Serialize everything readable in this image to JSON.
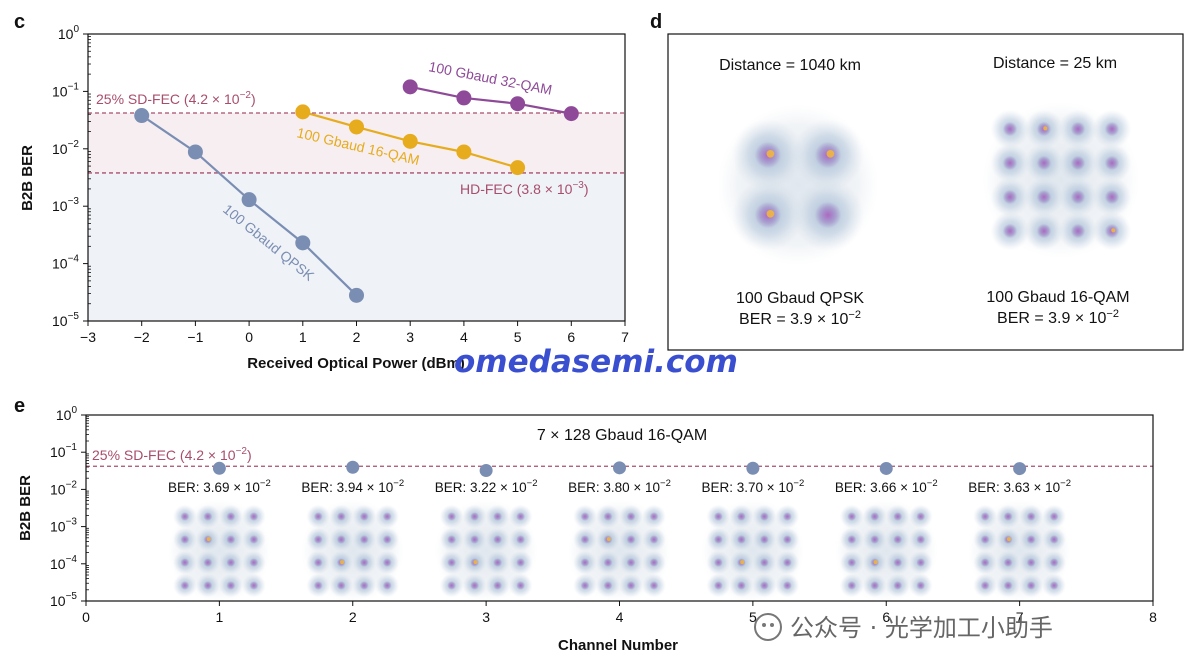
{
  "panels": {
    "c": "c",
    "d": "d",
    "e": "e"
  },
  "colors": {
    "qpsk": "#7a8db3",
    "qam16": "#e7ac1d",
    "qam32": "#8e4a98",
    "fec": "#a84e6c",
    "shade_top": "#f6eef1",
    "shade_bottom": "#eff2f6",
    "const_glow": "#a9bed6",
    "const_core": "#b06ac0",
    "const_peak": "#f1b63e"
  },
  "chart_data": [
    {
      "id": "c",
      "type": "line",
      "xlabel": "Received Optical Power (dBm)",
      "ylabel": "B2B BER",
      "xlim": [
        -3,
        7
      ],
      "xticks": [
        "−3",
        "−2",
        "−1",
        "0",
        "1",
        "2",
        "3",
        "4",
        "5",
        "6",
        "7"
      ],
      "ylim_log10": [
        -5,
        0
      ],
      "yticks": [
        {
          "base": "10",
          "exp": "0"
        },
        {
          "base": "10",
          "exp": "−1"
        },
        {
          "base": "10",
          "exp": "−2"
        },
        {
          "base": "10",
          "exp": "−3"
        },
        {
          "base": "10",
          "exp": "−4"
        },
        {
          "base": "10",
          "exp": "−5"
        }
      ],
      "series": [
        {
          "name": "100 Gbaud QPSK",
          "color_key": "qpsk",
          "x": [
            -2,
            -1,
            0,
            1,
            2
          ],
          "y": [
            0.038,
            0.0088,
            0.0013,
            0.00023,
            2.8e-05
          ]
        },
        {
          "name": "100 Gbaud 16-QAM",
          "color_key": "qam16",
          "x": [
            1,
            2,
            3,
            4,
            5
          ],
          "y": [
            0.044,
            0.024,
            0.0135,
            0.0088,
            0.0047
          ]
        },
        {
          "name": "100 Gbaud 32-QAM",
          "color_key": "qam32",
          "x": [
            3,
            4,
            5,
            6
          ],
          "y": [
            0.12,
            0.077,
            0.061,
            0.041
          ]
        }
      ],
      "series_labels": {
        "qpsk": "100 Gbaud QPSK",
        "qam16": "100 Gbaud 16-QAM",
        "qam32": "100 Gbaud 32-QAM"
      },
      "thresholds": [
        {
          "id": "sd",
          "value": 0.042,
          "label_prefix": "25% SD-FEC (4.2 × 10",
          "label_exp": "−2",
          "label_suffix": ")"
        },
        {
          "id": "hd",
          "value": 0.0038,
          "label_prefix": "HD-FEC (3.8 × 10",
          "label_exp": "−3",
          "label_suffix": ")"
        }
      ]
    },
    {
      "id": "d",
      "type": "other",
      "items": [
        {
          "title": "Distance = 1040 km",
          "format": "100 Gbaud QPSK",
          "ber_prefix": "BER = 3.9 × 10",
          "ber_exp": "−2",
          "grid": 2
        },
        {
          "title": "Distance = 25 km",
          "format": "100 Gbaud 16-QAM",
          "ber_prefix": "BER = 3.9 × 10",
          "ber_exp": "−2",
          "grid": 4
        }
      ]
    },
    {
      "id": "e",
      "type": "scatter",
      "title": "7 × 128 Gbaud 16-QAM",
      "xlabel": "Channel Number",
      "ylabel": "B2B BER",
      "xlim": [
        0,
        8
      ],
      "xticks": [
        "0",
        "1",
        "2",
        "3",
        "4",
        "5",
        "6",
        "7",
        "8"
      ],
      "ylim_log10": [
        -5,
        0
      ],
      "yticks": [
        {
          "base": "10",
          "exp": "0"
        },
        {
          "base": "10",
          "exp": "−1"
        },
        {
          "base": "10",
          "exp": "−2"
        },
        {
          "base": "10",
          "exp": "−3"
        },
        {
          "base": "10",
          "exp": "−4"
        },
        {
          "base": "10",
          "exp": "−5"
        }
      ],
      "threshold": {
        "value": 0.042,
        "label_prefix": "25% SD-FEC (4.2 × 10",
        "label_exp": "−2",
        "label_suffix": ")"
      },
      "points": [
        {
          "x": 1,
          "y": 0.0369,
          "label_prefix": "BER: 3.69 × 10",
          "label_exp": "−2"
        },
        {
          "x": 2,
          "y": 0.0394,
          "label_prefix": "BER: 3.94 × 10",
          "label_exp": "−2"
        },
        {
          "x": 3,
          "y": 0.0322,
          "label_prefix": "BER: 3.22 × 10",
          "label_exp": "−2"
        },
        {
          "x": 4,
          "y": 0.038,
          "label_prefix": "BER: 3.80 × 10",
          "label_exp": "−2"
        },
        {
          "x": 5,
          "y": 0.037,
          "label_prefix": "BER: 3.70 × 10",
          "label_exp": "−2"
        },
        {
          "x": 6,
          "y": 0.0366,
          "label_prefix": "BER: 3.66 × 10",
          "label_exp": "−2"
        },
        {
          "x": 7,
          "y": 0.0363,
          "label_prefix": "BER: 3.63 × 10",
          "label_exp": "−2"
        }
      ]
    }
  ],
  "watermarks": {
    "site": "omedasemi.com",
    "wechat": "公众号 · 光学加工小助手"
  }
}
